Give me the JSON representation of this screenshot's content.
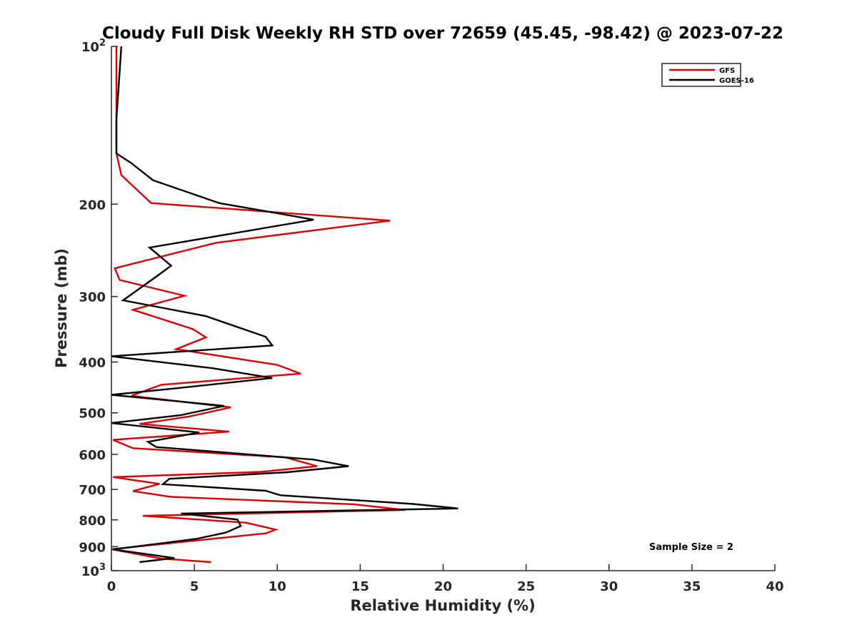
{
  "chart_data": {
    "type": "line",
    "title": "Cloudy Full Disk Weekly RH STD over 72659 (45.45, -98.42) @ 2023-07-22",
    "xlabel": "Relative Humidity (%)",
    "ylabel": "Pressure (mb)",
    "xlim": [
      0,
      40
    ],
    "ylim": [
      100,
      1000
    ],
    "y_scale": "log",
    "y_reversed": true,
    "x_ticks": [
      "0",
      "5",
      "10",
      "15",
      "20",
      "25",
      "30",
      "35",
      "40"
    ],
    "y_ticks": [
      {
        "value": 100,
        "base": "10",
        "exp": "2"
      },
      {
        "value": 200,
        "label": "200"
      },
      {
        "value": 300,
        "label": "300"
      },
      {
        "value": 400,
        "label": "400"
      },
      {
        "value": 500,
        "label": "500"
      },
      {
        "value": 600,
        "label": "600"
      },
      {
        "value": 700,
        "label": "700"
      },
      {
        "value": 800,
        "label": "800"
      },
      {
        "value": 900,
        "label": "900"
      },
      {
        "value": 1000,
        "base": "10",
        "exp": "3"
      }
    ],
    "grid": false,
    "legend_position": "top-right",
    "annotation": "Sample Size = 2",
    "series": [
      {
        "name": "GFS",
        "color": "#e00000",
        "points": [
          [
            0.3,
            100
          ],
          [
            0.3,
            113
          ],
          [
            0.3,
            139
          ],
          [
            0.3,
            160
          ],
          [
            0.6,
            176
          ],
          [
            2.4,
            199
          ],
          [
            16.8,
            215
          ],
          [
            6.3,
            237
          ],
          [
            0.2,
            265
          ],
          [
            0.5,
            279
          ],
          [
            4.4,
            299
          ],
          [
            1.3,
            318
          ],
          [
            4.9,
            346
          ],
          [
            5.7,
            359
          ],
          [
            3.9,
            378
          ],
          [
            10.0,
            405
          ],
          [
            11.4,
            421
          ],
          [
            3.0,
            442
          ],
          [
            1.2,
            464
          ],
          [
            7.2,
            488
          ],
          [
            4.7,
            508
          ],
          [
            1.7,
            525
          ],
          [
            7.1,
            543
          ],
          [
            0.1,
            563
          ],
          [
            1.3,
            584
          ],
          [
            10.5,
            608
          ],
          [
            12.4,
            632
          ],
          [
            9.0,
            648
          ],
          [
            0.1,
            663
          ],
          [
            2.9,
            683
          ],
          [
            1.3,
            705
          ],
          [
            3.6,
            723
          ],
          [
            14.6,
            747
          ],
          [
            17.7,
            766
          ],
          [
            1.9,
            786
          ],
          [
            8.1,
            810
          ],
          [
            9.9,
            835
          ],
          [
            9.3,
            849
          ],
          [
            0.0,
            910
          ],
          [
            3.0,
            948
          ],
          [
            6.0,
            963
          ]
        ]
      },
      {
        "name": "GOES-16",
        "color": "#000000",
        "points": [
          [
            0.6,
            100
          ],
          [
            0.3,
            138
          ],
          [
            0.3,
            160
          ],
          [
            1.2,
            167
          ],
          [
            2.5,
            180
          ],
          [
            6.5,
            199
          ],
          [
            12.2,
            214
          ],
          [
            2.3,
            242
          ],
          [
            3.6,
            262
          ],
          [
            2.7,
            275
          ],
          [
            0.7,
            305
          ],
          [
            5.7,
            327
          ],
          [
            9.3,
            358
          ],
          [
            9.7,
            372
          ],
          [
            0.0,
            390
          ],
          [
            6.1,
            411
          ],
          [
            9.7,
            429
          ],
          [
            3.6,
            450
          ],
          [
            0.0,
            462
          ],
          [
            6.8,
            485
          ],
          [
            4.2,
            505
          ],
          [
            0.0,
            523
          ],
          [
            5.3,
            545
          ],
          [
            2.2,
            568
          ],
          [
            2.7,
            581
          ],
          [
            12.2,
            614
          ],
          [
            14.3,
            632
          ],
          [
            10.6,
            649
          ],
          [
            3.5,
            668
          ],
          [
            3.1,
            684
          ],
          [
            9.3,
            704
          ],
          [
            10.2,
            718
          ],
          [
            18.2,
            746
          ],
          [
            20.9,
            761
          ],
          [
            4.2,
            778
          ],
          [
            7.6,
            799
          ],
          [
            7.8,
            822
          ],
          [
            6.9,
            846
          ],
          [
            5.1,
            870
          ],
          [
            0.1,
            911
          ],
          [
            3.8,
            946
          ],
          [
            1.7,
            963
          ]
        ]
      }
    ]
  }
}
